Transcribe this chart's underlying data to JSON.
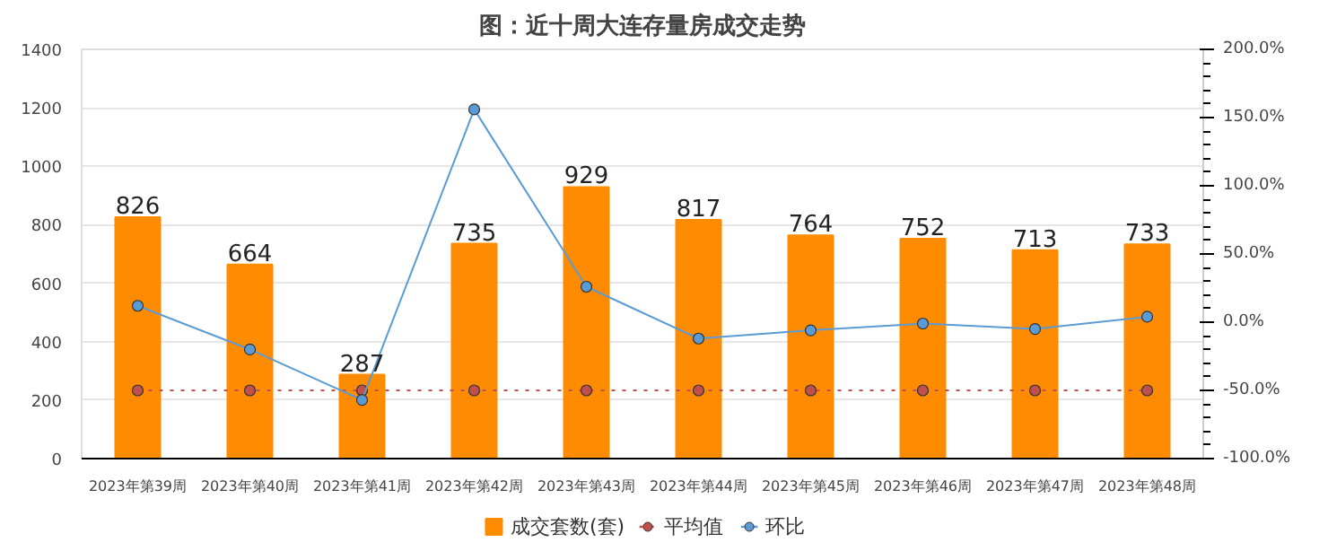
{
  "chart_data": {
    "type": "bar",
    "title": "图：近十周大连存量房成交走势",
    "categories": [
      "2023年第39周",
      "2023年第40周",
      "2023年第41周",
      "2023年第42周",
      "2023年第43周",
      "2023年第44周",
      "2023年第45周",
      "2023年第46周",
      "2023年第47周",
      "2023年第48周"
    ],
    "series": [
      {
        "name": "成交套数(套)",
        "color": "#ff8c00",
        "values": [
          826,
          664,
          287,
          735,
          929,
          817,
          764,
          752,
          713,
          733
        ],
        "value_labels": [
          "826",
          "664",
          "287",
          "735",
          "929",
          "817",
          "764",
          "752",
          "713",
          "733"
        ]
      },
      {
        "name": "平均值",
        "type": "line",
        "axis": "y2",
        "color": "#c0504d",
        "line_style": "dotted",
        "marker": "circle",
        "values": [
          -50,
          -50,
          -50,
          -50,
          -50,
          -50,
          -50,
          -50,
          -50,
          -50
        ]
      },
      {
        "name": "环比",
        "type": "line",
        "axis": "y2",
        "color": "#5b9bd5",
        "line_style": "solid",
        "marker": "circle",
        "values": [
          12,
          -20,
          -57,
          156,
          26,
          -12,
          -6,
          -1,
          -5,
          4
        ]
      }
    ],
    "ylim": [
      0,
      1400
    ],
    "yticks": [
      0,
      200,
      400,
      600,
      800,
      1000,
      1200,
      1400
    ],
    "y2lim": [
      -100,
      200
    ],
    "y2ticks": [
      {
        "value": -100,
        "label": "-100.0%"
      },
      {
        "value": -50,
        "label": "-50.0%"
      },
      {
        "value": 0,
        "label": "0.0%"
      },
      {
        "value": 50,
        "label": "50.0%"
      },
      {
        "value": 100,
        "label": "100.0%"
      },
      {
        "value": 150,
        "label": "150.0%"
      },
      {
        "value": 200,
        "label": "200.0%"
      }
    ],
    "grid": "y",
    "legend": "bottom"
  }
}
